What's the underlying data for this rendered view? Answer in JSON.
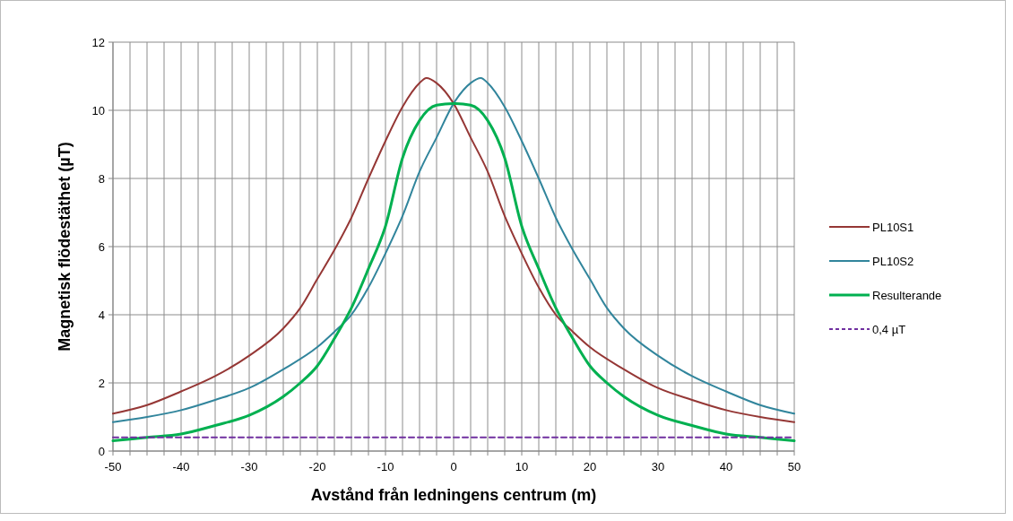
{
  "chart_data": {
    "type": "line",
    "xlabel": "Avstånd från ledningens centrum (m)",
    "ylabel": "Magnetisk flödestäthet (µT)",
    "xlim": [
      -50,
      50
    ],
    "xticks": [
      -50,
      -40,
      -30,
      -20,
      -10,
      0,
      10,
      20,
      30,
      40,
      50
    ],
    "ylim": [
      0,
      12
    ],
    "yticks": [
      0,
      2,
      4,
      6,
      8,
      10,
      12
    ],
    "grid": true,
    "legend": "right",
    "series": [
      {
        "name": "PL10S1",
        "color": "#953735",
        "x": [
          -50,
          -45,
          -40,
          -35,
          -30,
          -25,
          -22.5,
          -20,
          -17.5,
          -15,
          -12.5,
          -10,
          -7.5,
          -5,
          -4,
          -2.5,
          0,
          2.5,
          5,
          7.5,
          10,
          12.5,
          15,
          17.5,
          20,
          25,
          30,
          35,
          40,
          45,
          50
        ],
        "values": [
          1.1,
          1.35,
          1.75,
          2.2,
          2.8,
          3.6,
          4.2,
          5.05,
          5.9,
          6.85,
          8.0,
          9.1,
          10.1,
          10.8,
          10.95,
          10.8,
          10.2,
          9.2,
          8.2,
          6.9,
          5.8,
          4.8,
          4.0,
          3.5,
          3.05,
          2.4,
          1.85,
          1.5,
          1.2,
          1.0,
          0.85
        ]
      },
      {
        "name": "PL10S2",
        "color": "#31859c",
        "x": [
          -50,
          -45,
          -40,
          -35,
          -30,
          -25,
          -20,
          -17.5,
          -15,
          -12.5,
          -10,
          -7.5,
          -5,
          -2.5,
          0,
          2.5,
          4,
          5,
          7.5,
          10,
          12.5,
          15,
          17.5,
          20,
          22.5,
          25,
          30,
          35,
          40,
          45,
          50
        ],
        "values": [
          0.85,
          1.0,
          1.2,
          1.5,
          1.85,
          2.4,
          3.05,
          3.5,
          4.0,
          4.8,
          5.8,
          6.9,
          8.2,
          9.2,
          10.2,
          10.8,
          10.95,
          10.8,
          10.1,
          9.1,
          8.0,
          6.85,
          5.9,
          5.05,
          4.2,
          3.6,
          2.8,
          2.2,
          1.75,
          1.35,
          1.1
        ]
      },
      {
        "name": "Resulterande",
        "color": "#00b050",
        "x": [
          -50,
          -45,
          -40,
          -35,
          -30,
          -25,
          -22.5,
          -20,
          -17.5,
          -15,
          -12.5,
          -10,
          -7.5,
          -5,
          -2.5,
          0,
          2.5,
          5,
          7.5,
          10,
          12.5,
          15,
          17.5,
          20,
          22.5,
          25,
          30,
          35,
          40,
          45,
          50
        ],
        "values": [
          0.3,
          0.4,
          0.5,
          0.75,
          1.05,
          1.6,
          2.0,
          2.5,
          3.3,
          4.2,
          5.35,
          6.6,
          8.6,
          9.7,
          10.15,
          10.2,
          10.15,
          9.7,
          8.6,
          6.6,
          5.35,
          4.2,
          3.3,
          2.5,
          2.0,
          1.6,
          1.05,
          0.75,
          0.5,
          0.4,
          0.3
        ]
      },
      {
        "name": "0,4 µT",
        "color": "#7030a0",
        "line_style": "dashed",
        "x": [
          -50,
          50
        ],
        "values": [
          0.4,
          0.4
        ]
      }
    ]
  }
}
